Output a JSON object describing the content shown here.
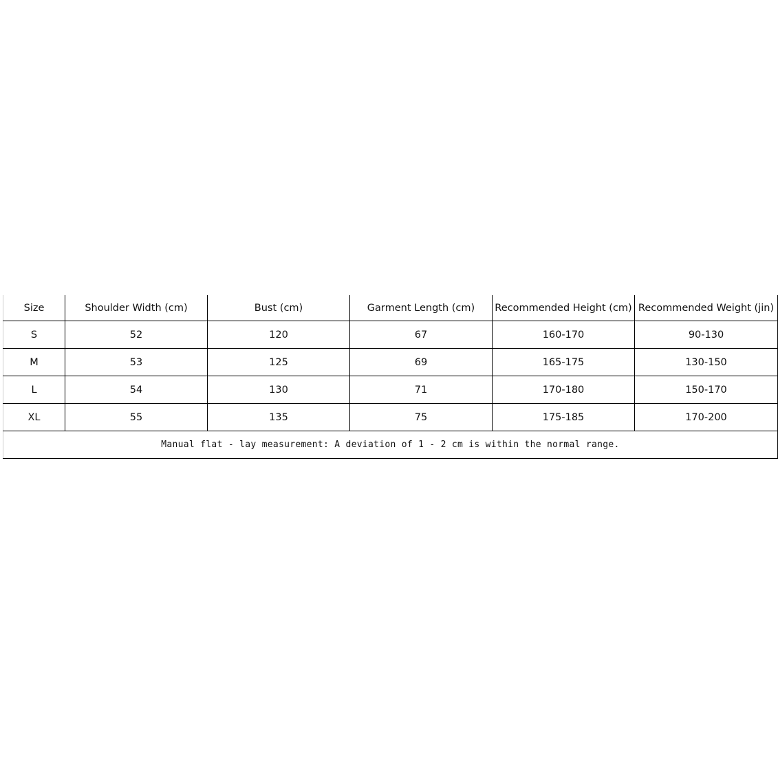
{
  "headers": [
    "Size",
    "Shoulder Width (cm)",
    "Bust (cm)",
    "Garment Length (cm)",
    "Recommended Height (cm)",
    "Recommended Weight (jin)"
  ],
  "rows": [
    [
      "S",
      "52",
      "120",
      "67",
      "160-170",
      "90-130"
    ],
    [
      "M",
      "53",
      "125",
      "69",
      "165-175",
      "130-150"
    ],
    [
      "L",
      "54",
      "130",
      "71",
      "170-180",
      "150-170"
    ],
    [
      "XL",
      "55",
      "135",
      "75",
      "175-185",
      "170-200"
    ]
  ],
  "note": "Manual flat - lay measurement: A deviation of 1 - 2 cm is within the normal range."
}
